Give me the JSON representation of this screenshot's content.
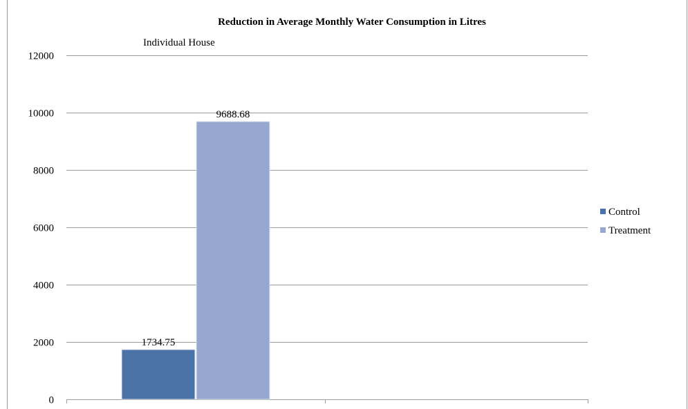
{
  "chart_data": {
    "type": "bar",
    "title": "Reduction in Average Monthly Water Consumption in Litres",
    "subtitle": "Individual House",
    "categories": [
      "",
      ""
    ],
    "series": [
      {
        "name": "Control",
        "values": [
          1734.75,
          null
        ],
        "color": "#4a72a6",
        "data_label": "1734.75"
      },
      {
        "name": "Treatment",
        "values": [
          9688.68,
          null
        ],
        "color": "#96a8d0",
        "data_label": "9688.68"
      }
    ],
    "ylim": [
      0,
      12000
    ],
    "yticks": [
      {
        "value": 0,
        "label": "0"
      },
      {
        "value": 2000,
        "label": "2000"
      },
      {
        "value": 4000,
        "label": "4000"
      },
      {
        "value": 6000,
        "label": "6000"
      },
      {
        "value": 8000,
        "label": "8000"
      },
      {
        "value": 10000,
        "label": "10000"
      },
      {
        "value": 12000,
        "label": "12000"
      }
    ],
    "grid": true,
    "legend_position": "right"
  }
}
